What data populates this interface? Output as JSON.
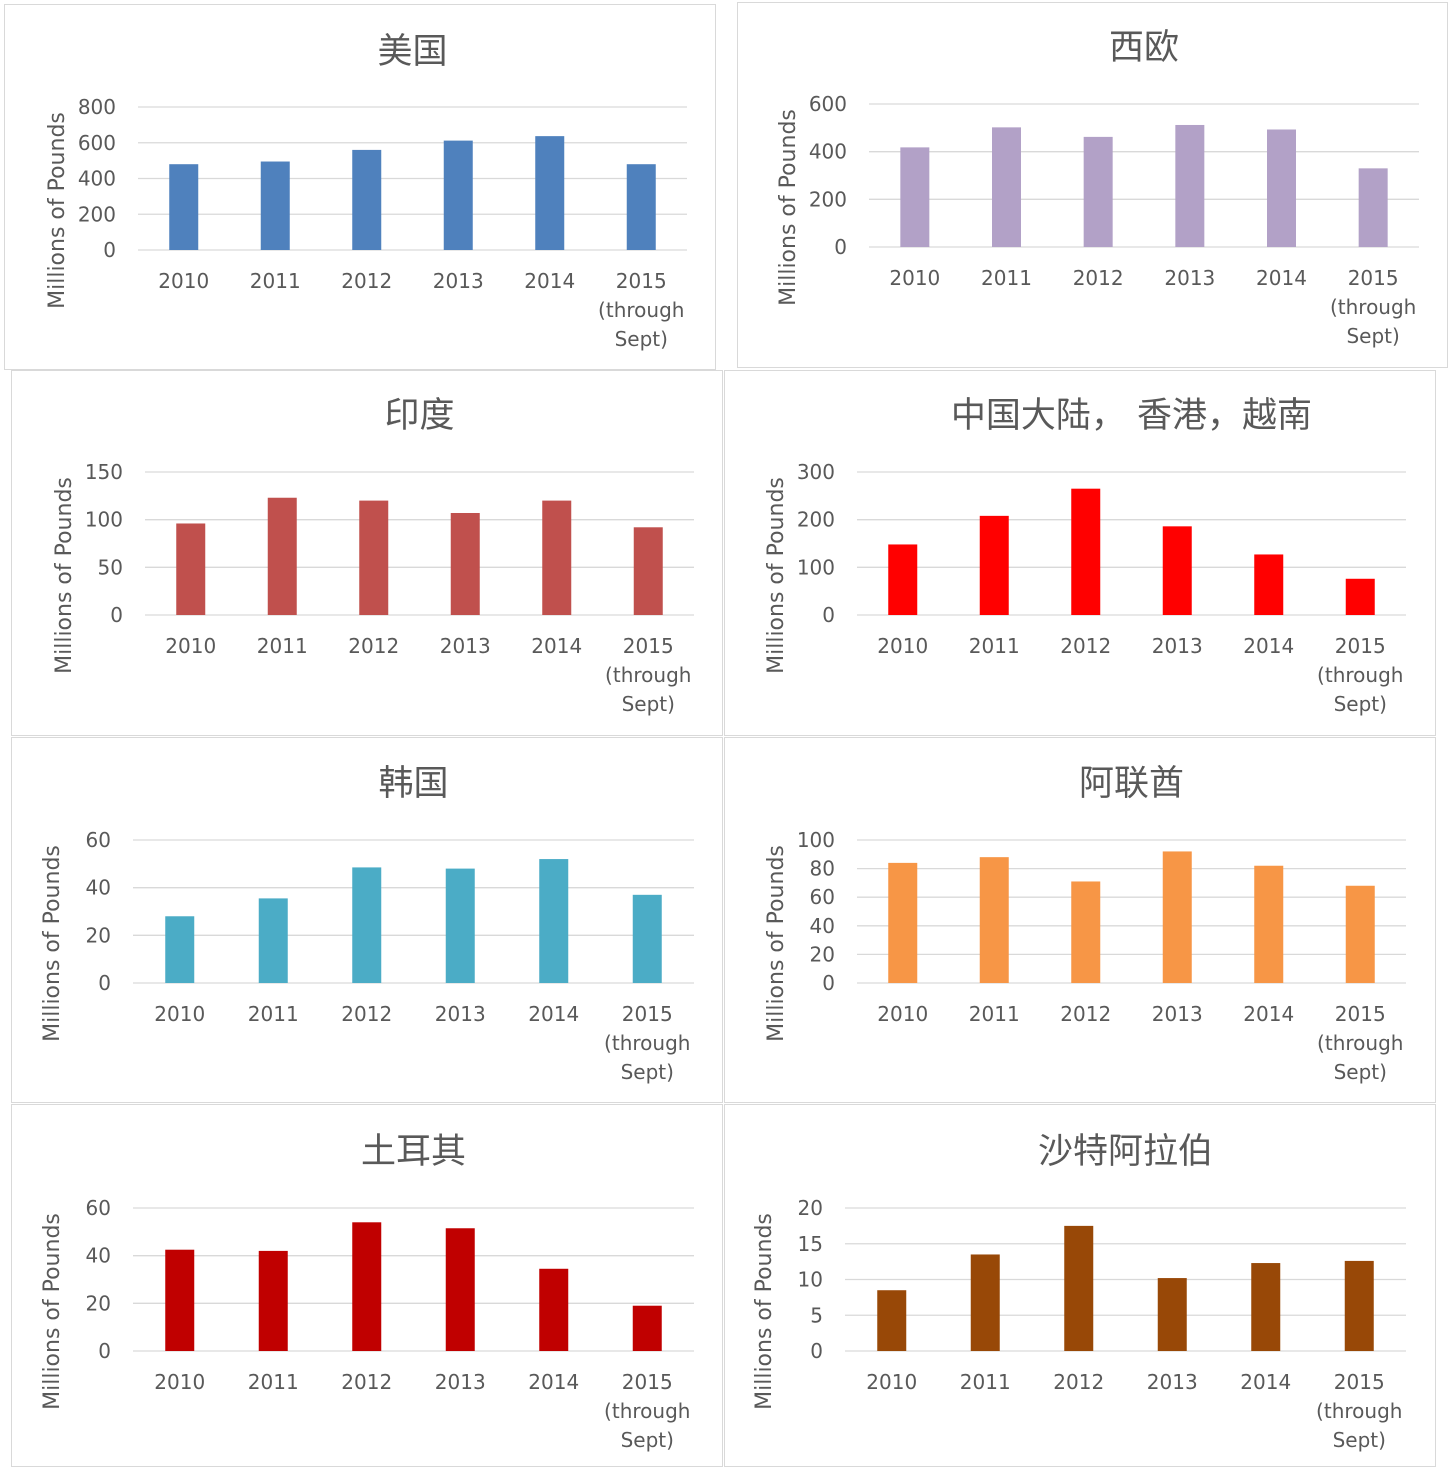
{
  "chart_data": [
    {
      "type": "bar",
      "title": "美国",
      "ylabel": "Millions of Pounds",
      "categories": [
        "2010",
        "2011",
        "2012",
        "2013",
        "2014",
        "2015 (through Sept)"
      ],
      "values": [
        480,
        495,
        560,
        612,
        637,
        480
      ],
      "ylim": [
        0,
        800
      ],
      "yticks": [
        0,
        200,
        400,
        600,
        800
      ],
      "color": "#4F81BD",
      "grid": true
    },
    {
      "type": "bar",
      "title": "西欧",
      "ylabel": "Millions of Pounds",
      "categories": [
        "2010",
        "2011",
        "2012",
        "2013",
        "2014",
        "2015 (through Sept)"
      ],
      "values": [
        418,
        502,
        462,
        512,
        493,
        330
      ],
      "ylim": [
        0,
        600
      ],
      "yticks": [
        0,
        200,
        400,
        600
      ],
      "color": "#B2A1C7",
      "grid": true
    },
    {
      "type": "bar",
      "title": "印度",
      "ylabel": "Millions of Pounds",
      "categories": [
        "2010",
        "2011",
        "2012",
        "2013",
        "2014",
        "2015 (through Sept)"
      ],
      "values": [
        96,
        123,
        120,
        107,
        120,
        92
      ],
      "ylim": [
        0,
        150
      ],
      "yticks": [
        0,
        50,
        100,
        150
      ],
      "color": "#C0504D",
      "grid": true
    },
    {
      "type": "bar",
      "title": "中国大陆， 香港，越南",
      "ylabel": "Millions of Pounds",
      "categories": [
        "2010",
        "2011",
        "2012",
        "2013",
        "2014",
        "2015 (through Sept)"
      ],
      "values": [
        148,
        208,
        265,
        186,
        127,
        76
      ],
      "ylim": [
        0,
        300
      ],
      "yticks": [
        0,
        100,
        200,
        300
      ],
      "color": "#FF0000",
      "grid": true
    },
    {
      "type": "bar",
      "title": "韩国",
      "ylabel": "Millions of Pounds",
      "categories": [
        "2010",
        "2011",
        "2012",
        "2013",
        "2014",
        "2015 (through Sept)"
      ],
      "values": [
        28,
        35.5,
        48.5,
        48,
        52,
        37
      ],
      "ylim": [
        0,
        60
      ],
      "yticks": [
        0,
        20,
        40,
        60
      ],
      "color": "#4BACC6",
      "grid": true
    },
    {
      "type": "bar",
      "title": "阿联酋",
      "ylabel": "Millions of Pounds",
      "categories": [
        "2010",
        "2011",
        "2012",
        "2013",
        "2014",
        "2015 (through Sept)"
      ],
      "values": [
        84,
        88,
        71,
        92,
        82,
        68
      ],
      "ylim": [
        0,
        100
      ],
      "yticks": [
        0,
        20,
        40,
        60,
        80,
        100
      ],
      "color": "#F79646",
      "grid": true
    },
    {
      "type": "bar",
      "title": "土耳其",
      "ylabel": "Millions of Pounds",
      "categories": [
        "2010",
        "2011",
        "2012",
        "2013",
        "2014",
        "2015 (through Sept)"
      ],
      "values": [
        42.5,
        42,
        54,
        51.5,
        34.5,
        19
      ],
      "ylim": [
        0,
        60
      ],
      "yticks": [
        0,
        20,
        40,
        60
      ],
      "color": "#C00000",
      "grid": true
    },
    {
      "type": "bar",
      "title": "沙特阿拉伯",
      "ylabel": "Millions of Pounds",
      "categories": [
        "2010",
        "2011",
        "2012",
        "2013",
        "2014",
        "2015 (through Sept)"
      ],
      "values": [
        8.5,
        13.5,
        17.5,
        10.2,
        12.3,
        12.6
      ],
      "ylim": [
        0,
        20
      ],
      "yticks": [
        0,
        5,
        10,
        15,
        20
      ],
      "color": "#984807",
      "grid": true
    }
  ]
}
